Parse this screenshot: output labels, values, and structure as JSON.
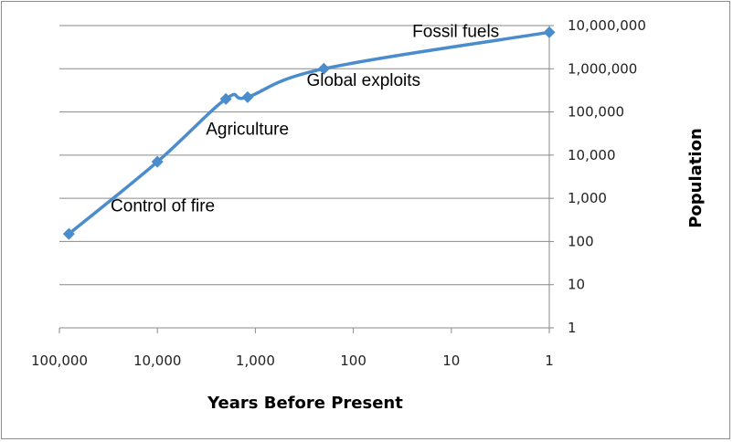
{
  "chart_data": {
    "type": "line",
    "title": "",
    "xlabel": "Years Before Present",
    "ylabel": "Population",
    "x_scale": "log-reversed",
    "y_scale": "log",
    "xlim": [
      100000,
      1
    ],
    "ylim": [
      1,
      10000000
    ],
    "x_ticks": [
      "100,000",
      "10,000",
      "1,000",
      "100",
      "10",
      "1"
    ],
    "y_ticks": [
      "1",
      "10",
      "100",
      "1,000",
      "10,000",
      "100,000",
      "1,000,000",
      "10,000,000"
    ],
    "y_axis_side": "right",
    "grid": "horizontal",
    "legend": "none",
    "series": [
      {
        "color": "#4a8ccc",
        "marker": "diamond",
        "points": [
          {
            "x": 80000,
            "y": 150
          },
          {
            "x": 10000,
            "y": 7000
          },
          {
            "x": 2000,
            "y": 200000
          },
          {
            "x": 1200,
            "y": 220000
          },
          {
            "x": 200,
            "y": 1000000
          },
          {
            "x": 1,
            "y": 7000000
          }
        ]
      }
    ],
    "annotations": [
      {
        "text": "Control of fire",
        "x": 30000,
        "y": 500
      },
      {
        "text": "Agriculture",
        "x": 3200,
        "y": 30000
      },
      {
        "text": "Global exploits",
        "x": 300,
        "y": 400000
      },
      {
        "text": "Fossil fuels",
        "x": 25,
        "y": 5500000
      }
    ]
  }
}
